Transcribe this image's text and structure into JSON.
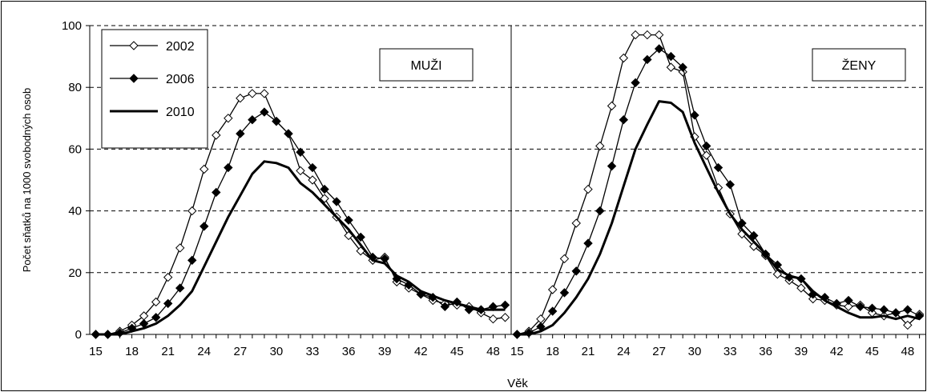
{
  "chart_data": {
    "type": "line",
    "ylabel": "Počet sňatků na 1000 svobodných osob",
    "xlabel": "Věk",
    "ylim": [
      0,
      100
    ],
    "yticks": [
      0,
      20,
      40,
      60,
      80,
      100
    ],
    "x": [
      15,
      16,
      17,
      18,
      19,
      20,
      21,
      22,
      23,
      24,
      25,
      26,
      27,
      28,
      29,
      30,
      31,
      32,
      33,
      34,
      35,
      36,
      37,
      38,
      39,
      40,
      41,
      42,
      43,
      44,
      45,
      46,
      47,
      48,
      49
    ],
    "xtick_labels": [
      "15",
      "18",
      "21",
      "24",
      "27",
      "30",
      "33",
      "36",
      "39",
      "42",
      "45",
      "48"
    ],
    "grid": "horizontal dashed",
    "legend_position": "top-left",
    "panels": [
      {
        "label": "MUŽI",
        "series": [
          {
            "name": "2002",
            "style": "open-diamond",
            "values": [
              0,
              0,
              1,
              3,
              6,
              10.5,
              18.5,
              28,
              40,
              53.5,
              64.5,
              70,
              76.5,
              78,
              78,
              69,
              65,
              53,
              50,
              44,
              38,
              32,
              27,
              24,
              25,
              17,
              15,
              13,
              11,
              10,
              9.5,
              9,
              7,
              5,
              5.5
            ]
          },
          {
            "name": "2006",
            "style": "filled-diamond",
            "values": [
              0,
              0,
              0.5,
              2,
              3.5,
              5.5,
              10,
              15,
              24,
              35,
              46,
              54,
              65,
              69.5,
              72,
              69,
              65,
              59,
              54,
              47,
              43,
              37,
              31.5,
              25,
              24.5,
              18,
              16,
              13,
              12,
              9,
              10.5,
              8,
              8,
              9,
              9.5
            ]
          },
          {
            "name": "2010",
            "style": "thick-line",
            "values": [
              0,
              0,
              0,
              1,
              2,
              3.5,
              6,
              9.5,
              14,
              22,
              30,
              38,
              45,
              52,
              56,
              55.5,
              54,
              49,
              46,
              42,
              38,
              34,
              29,
              24,
              23,
              19,
              17,
              14,
              12.5,
              11,
              10,
              9,
              8,
              8,
              8
            ]
          }
        ]
      },
      {
        "label": "ŽENY",
        "series": [
          {
            "name": "2002",
            "style": "open-diamond",
            "values": [
              0,
              1,
              5,
              14.5,
              24.5,
              36,
              47,
              61,
              74,
              89.5,
              97,
              97,
              97,
              86.5,
              85,
              64,
              58,
              47.5,
              39,
              32.5,
              28.5,
              25.5,
              19.5,
              17.5,
              15,
              11.5,
              11,
              9.5,
              9,
              9.5,
              7,
              6,
              7,
              3,
              6.5
            ]
          },
          {
            "name": "2006",
            "style": "filled-diamond",
            "values": [
              0,
              0.5,
              2.5,
              7.5,
              13.5,
              20.5,
              29.5,
              40,
              54.5,
              69.5,
              81.5,
              89,
              92.5,
              90,
              86.5,
              71,
              61,
              54,
              48.5,
              36,
              32,
              26,
              22.5,
              18.5,
              18,
              13,
              12,
              10,
              11,
              9,
              8.5,
              8,
              7,
              8,
              6
            ]
          },
          {
            "name": "2010",
            "style": "thick-line",
            "values": [
              0,
              0,
              1,
              3,
              7,
              12,
              18,
              26,
              36,
              48,
              60,
              68,
              75.5,
              75,
              72,
              62,
              54,
              46,
              39,
              34,
              30,
              26,
              21,
              19,
              18,
              14,
              11,
              9,
              7,
              5.5,
              5.5,
              6,
              5,
              6,
              5
            ]
          }
        ]
      }
    ],
    "legend": [
      "2002",
      "2006",
      "2010"
    ]
  }
}
